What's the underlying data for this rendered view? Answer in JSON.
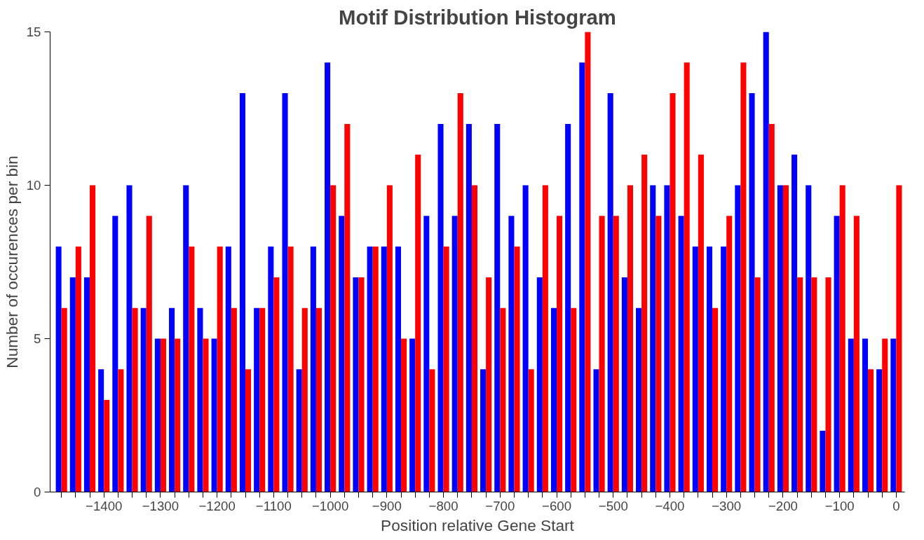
{
  "chart_data": {
    "type": "bar",
    "title": "Motif Distribution Histogram",
    "xlabel": "Position relative Gene Start",
    "ylabel": "Number of occurences per bin",
    "x": [
      -1475,
      -1450,
      -1425,
      -1400,
      -1375,
      -1350,
      -1325,
      -1300,
      -1275,
      -1250,
      -1225,
      -1200,
      -1175,
      -1150,
      -1125,
      -1100,
      -1075,
      -1050,
      -1025,
      -1000,
      -975,
      -950,
      -925,
      -900,
      -875,
      -850,
      -825,
      -800,
      -775,
      -750,
      -725,
      -700,
      -675,
      -650,
      -625,
      -600,
      -575,
      -550,
      -525,
      -500,
      -475,
      -450,
      -425,
      -400,
      -375,
      -350,
      -325,
      -300,
      -275,
      -250,
      -225,
      -200,
      -175,
      -150,
      -125,
      -100,
      -75,
      -50,
      -25,
      0
    ],
    "series": [
      {
        "color": "#0000ff",
        "values": [
          8,
          7,
          7,
          4,
          9,
          10,
          6,
          5,
          6,
          10,
          6,
          5,
          8,
          13,
          6,
          8,
          13,
          4,
          8,
          14,
          9,
          7,
          8,
          8,
          8,
          5,
          9,
          12,
          9,
          12,
          4,
          12,
          9,
          10,
          7,
          6,
          12,
          14,
          4,
          13,
          7,
          6,
          10,
          10,
          9,
          8,
          8,
          8,
          10,
          13,
          15,
          10,
          11,
          10,
          2,
          9,
          5,
          5,
          4,
          5
        ]
      },
      {
        "color": "#ff0000",
        "values": [
          6,
          8,
          10,
          3,
          4,
          6,
          9,
          5,
          5,
          8,
          5,
          8,
          6,
          4,
          6,
          7,
          8,
          6,
          6,
          10,
          12,
          7,
          8,
          10,
          5,
          11,
          4,
          8,
          13,
          10,
          7,
          6,
          8,
          4,
          10,
          9,
          6,
          15,
          9,
          9,
          10,
          11,
          9,
          13,
          14,
          11,
          6,
          9,
          14,
          7,
          12,
          10,
          7,
          7,
          7,
          10,
          9,
          4,
          5,
          10
        ]
      }
    ],
    "xlim": [
      -1495,
      15
    ],
    "ylim": [
      0,
      15
    ],
    "yticks": [
      0,
      5,
      10,
      15
    ],
    "xticks": [
      {
        "value": -1475,
        "label": null
      },
      {
        "value": -1450,
        "label": null
      },
      {
        "value": -1425,
        "label": null
      },
      -1400,
      {
        "value": -1375,
        "label": null
      },
      {
        "value": -1350,
        "label": null
      },
      {
        "value": -1325,
        "label": null
      },
      -1300,
      {
        "value": -1275,
        "label": null
      },
      {
        "value": -1250,
        "label": null
      },
      {
        "value": -1225,
        "label": null
      },
      -1200,
      {
        "value": -1175,
        "label": null
      },
      {
        "value": -1150,
        "label": null
      },
      {
        "value": -1125,
        "label": null
      },
      -1100,
      {
        "value": -1075,
        "label": null
      },
      {
        "value": -1050,
        "label": null
      },
      {
        "value": -1025,
        "label": null
      },
      -1000,
      {
        "value": -975,
        "label": null
      },
      {
        "value": -950,
        "label": null
      },
      {
        "value": -925,
        "label": null
      },
      -900,
      {
        "value": -875,
        "label": null
      },
      {
        "value": -850,
        "label": null
      },
      {
        "value": -825,
        "label": null
      },
      -800,
      {
        "value": -775,
        "label": null
      },
      {
        "value": -750,
        "label": null
      },
      {
        "value": -725,
        "label": null
      },
      -700,
      {
        "value": -675,
        "label": null
      },
      {
        "value": -650,
        "label": null
      },
      {
        "value": -625,
        "label": null
      },
      -600,
      {
        "value": -575,
        "label": null
      },
      {
        "value": -550,
        "label": null
      },
      {
        "value": -525,
        "label": null
      },
      -500,
      {
        "value": -475,
        "label": null
      },
      {
        "value": -450,
        "label": null
      },
      {
        "value": -425,
        "label": null
      },
      -400,
      {
        "value": -375,
        "label": null
      },
      {
        "value": -350,
        "label": null
      },
      {
        "value": -325,
        "label": null
      },
      -300,
      {
        "value": -275,
        "label": null
      },
      {
        "value": -250,
        "label": null
      },
      {
        "value": -225,
        "label": null
      },
      -200,
      {
        "value": -175,
        "label": null
      },
      {
        "value": -150,
        "label": null
      },
      {
        "value": -125,
        "label": null
      },
      -100,
      {
        "value": -75,
        "label": null
      },
      {
        "value": -50,
        "label": null
      },
      {
        "value": -25,
        "label": null
      },
      0
    ]
  }
}
